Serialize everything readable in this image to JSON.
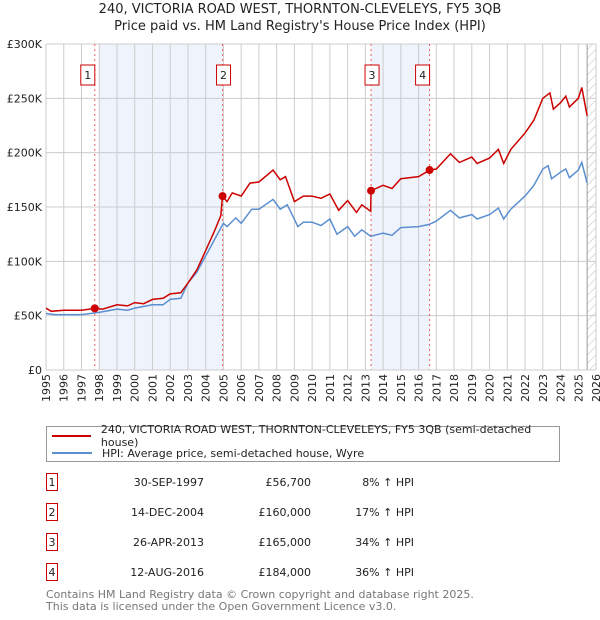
{
  "chart_data": {
    "type": "line",
    "title": "240, VICTORIA ROAD WEST, THORNTON-CLEVELEYS, FY5 3QB",
    "subtitle": "Price paid vs. HM Land Registry's House Price Index (HPI)",
    "xlim": [
      1995,
      2026
    ],
    "ylim": [
      0,
      300000
    ],
    "x_ticks": [
      "1995",
      "1996",
      "1997",
      "1998",
      "1999",
      "2000",
      "2001",
      "2002",
      "2003",
      "2004",
      "2005",
      "2006",
      "2007",
      "2008",
      "2009",
      "2010",
      "2011",
      "2012",
      "2013",
      "2014",
      "2015",
      "2016",
      "2017",
      "2018",
      "2019",
      "2020",
      "2021",
      "2022",
      "2023",
      "2024",
      "2025",
      "2026"
    ],
    "y_ticks": [
      {
        "v": 0,
        "label": "£0"
      },
      {
        "v": 50000,
        "label": "£50K"
      },
      {
        "v": 100000,
        "label": "£100K"
      },
      {
        "v": 150000,
        "label": "£150K"
      },
      {
        "v": 200000,
        "label": "£200K"
      },
      {
        "v": 250000,
        "label": "£250K"
      },
      {
        "v": 300000,
        "label": "£300K"
      }
    ],
    "grid": true,
    "series": [
      {
        "name": "240, VICTORIA ROAD WEST, THORNTON-CLEVELEYS, FY5 3QB (semi-detached house)",
        "color": "#cc0000",
        "points": [
          [
            1995,
            57000
          ],
          [
            1995.3,
            54000
          ],
          [
            1996,
            55000
          ],
          [
            1997,
            55000
          ],
          [
            1997.75,
            56700
          ],
          [
            1998.2,
            56000
          ],
          [
            1999,
            60000
          ],
          [
            1999.6,
            59000
          ],
          [
            2000,
            62000
          ],
          [
            2000.5,
            61000
          ],
          [
            2001,
            65000
          ],
          [
            2001.6,
            66000
          ],
          [
            2002,
            70000
          ],
          [
            2002.6,
            71000
          ],
          [
            2003,
            80000
          ],
          [
            2003.5,
            92000
          ],
          [
            2004,
            110000
          ],
          [
            2004.5,
            128000
          ],
          [
            2004.85,
            142000
          ],
          [
            2004.95,
            160000
          ],
          [
            2005.2,
            155000
          ],
          [
            2005.5,
            163000
          ],
          [
            2006,
            160000
          ],
          [
            2006.5,
            172000
          ],
          [
            2007,
            173000
          ],
          [
            2007.8,
            184000
          ],
          [
            2008.2,
            175000
          ],
          [
            2008.5,
            178000
          ],
          [
            2009,
            155000
          ],
          [
            2009.5,
            160000
          ],
          [
            2010,
            160000
          ],
          [
            2010.5,
            158000
          ],
          [
            2011,
            162000
          ],
          [
            2011.5,
            147000
          ],
          [
            2012,
            156000
          ],
          [
            2012.5,
            145000
          ],
          [
            2012.8,
            152000
          ],
          [
            2013.3,
            146000
          ],
          [
            2013.32,
            165000
          ],
          [
            2014,
            170000
          ],
          [
            2014.5,
            167000
          ],
          [
            2015,
            176000
          ],
          [
            2016,
            178000
          ],
          [
            2016.62,
            184000
          ],
          [
            2017,
            185000
          ],
          [
            2017.8,
            199000
          ],
          [
            2018.3,
            191000
          ],
          [
            2019,
            196000
          ],
          [
            2019.3,
            190000
          ],
          [
            2020,
            195000
          ],
          [
            2020.5,
            203000
          ],
          [
            2020.8,
            190000
          ],
          [
            2021.2,
            203000
          ],
          [
            2022,
            218000
          ],
          [
            2022.5,
            230000
          ],
          [
            2023,
            250000
          ],
          [
            2023.4,
            255000
          ],
          [
            2023.6,
            240000
          ],
          [
            2024,
            246000
          ],
          [
            2024.3,
            252000
          ],
          [
            2024.5,
            242000
          ],
          [
            2025,
            250000
          ],
          [
            2025.2,
            260000
          ],
          [
            2025.5,
            234000
          ]
        ]
      },
      {
        "name": "HPI: Average price, semi-detached house, Wyre",
        "color": "#5b8fd0",
        "points": [
          [
            1995,
            52000
          ],
          [
            1995.5,
            51000
          ],
          [
            1997,
            51000
          ],
          [
            1998,
            53000
          ],
          [
            1999,
            56000
          ],
          [
            1999.6,
            55000
          ],
          [
            2000,
            57000
          ],
          [
            2001,
            60000
          ],
          [
            2001.6,
            60000
          ],
          [
            2002,
            65000
          ],
          [
            2002.6,
            66000
          ],
          [
            2003,
            80000
          ],
          [
            2003.5,
            90000
          ],
          [
            2004,
            105000
          ],
          [
            2004.5,
            120000
          ],
          [
            2005,
            135000
          ],
          [
            2005.2,
            132000
          ],
          [
            2005.7,
            140000
          ],
          [
            2006,
            135000
          ],
          [
            2006.6,
            148000
          ],
          [
            2007,
            148000
          ],
          [
            2007.8,
            157000
          ],
          [
            2008.2,
            148000
          ],
          [
            2008.6,
            152000
          ],
          [
            2009.2,
            132000
          ],
          [
            2009.5,
            136000
          ],
          [
            2010,
            136000
          ],
          [
            2010.5,
            133000
          ],
          [
            2011,
            139000
          ],
          [
            2011.4,
            125000
          ],
          [
            2012,
            132000
          ],
          [
            2012.4,
            123000
          ],
          [
            2012.8,
            129000
          ],
          [
            2013.3,
            123000
          ],
          [
            2014,
            126000
          ],
          [
            2014.5,
            124000
          ],
          [
            2015,
            131000
          ],
          [
            2016,
            132000
          ],
          [
            2016.6,
            134000
          ],
          [
            2017,
            137000
          ],
          [
            2017.8,
            147000
          ],
          [
            2018.3,
            140000
          ],
          [
            2019,
            143000
          ],
          [
            2019.3,
            139000
          ],
          [
            2020,
            143000
          ],
          [
            2020.5,
            149000
          ],
          [
            2020.8,
            139000
          ],
          [
            2021.2,
            148000
          ],
          [
            2022,
            160000
          ],
          [
            2022.5,
            170000
          ],
          [
            2023,
            185000
          ],
          [
            2023.3,
            188000
          ],
          [
            2023.5,
            176000
          ],
          [
            2024,
            182000
          ],
          [
            2024.3,
            185000
          ],
          [
            2024.5,
            177000
          ],
          [
            2025,
            184000
          ],
          [
            2025.2,
            191000
          ],
          [
            2025.5,
            172000
          ]
        ]
      }
    ],
    "sales": [
      {
        "n": "1",
        "x": 1997.75,
        "y": 56700,
        "date": "30-SEP-1997",
        "price": "£56,700",
        "hpi": "8% ↑ HPI"
      },
      {
        "n": "2",
        "x": 2004.95,
        "y": 160000,
        "date": "14-DEC-2004",
        "price": "£160,000",
        "hpi": "17% ↑ HPI"
      },
      {
        "n": "3",
        "x": 2013.32,
        "y": 165000,
        "date": "26-APR-2013",
        "price": "£165,000",
        "hpi": "34% ↑ HPI"
      },
      {
        "n": "4",
        "x": 2016.62,
        "y": 184000,
        "date": "12-AUG-2016",
        "price": "£184,000",
        "hpi": "36% ↑ HPI"
      }
    ],
    "shaded_ranges": [
      [
        1998,
        2004.95
      ],
      [
        2013.32,
        2016.62
      ]
    ],
    "forecast_hatch_from": 2025.5
  },
  "footer": [
    "Contains HM Land Registry data © Crown copyright and database right 2025.",
    "This data is licensed under the Open Government Licence v3.0."
  ]
}
